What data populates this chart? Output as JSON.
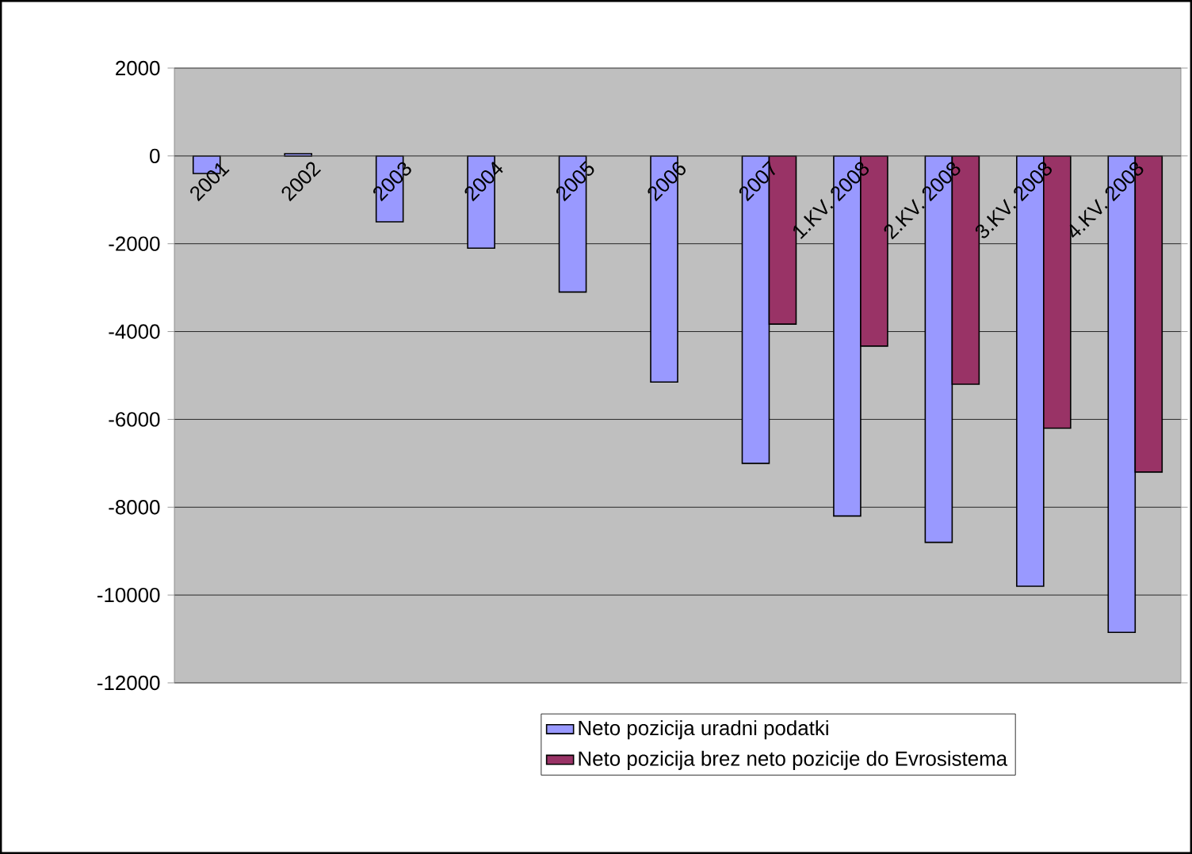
{
  "chart_data": {
    "type": "bar",
    "categories": [
      "2001",
      "2002",
      "2003",
      "2004",
      "2005",
      "2006",
      "2007",
      "1.KV. 2008",
      "2.KV. 2008",
      "3.KV. 2008",
      "4.KV. 2008"
    ],
    "series": [
      {
        "name": "Neto pozicija uradni podatki",
        "color": "#9999ff",
        "values": [
          -400,
          50,
          -1500,
          -2100,
          -3100,
          -5150,
          -7000,
          -8200,
          -8800,
          -9800,
          -10850
        ]
      },
      {
        "name": "Neto pozicija brez neto pozicije do Evrosistema",
        "color": "#993366",
        "values": [
          null,
          null,
          null,
          null,
          null,
          null,
          -3830,
          -4330,
          -5200,
          -6200,
          -7200
        ]
      }
    ],
    "ylim": [
      -12000,
      2000
    ],
    "yticks": [
      -12000,
      -10000,
      -8000,
      -6000,
      -4000,
      -2000,
      0,
      2000
    ],
    "grid": "y",
    "legend": "bottom"
  }
}
